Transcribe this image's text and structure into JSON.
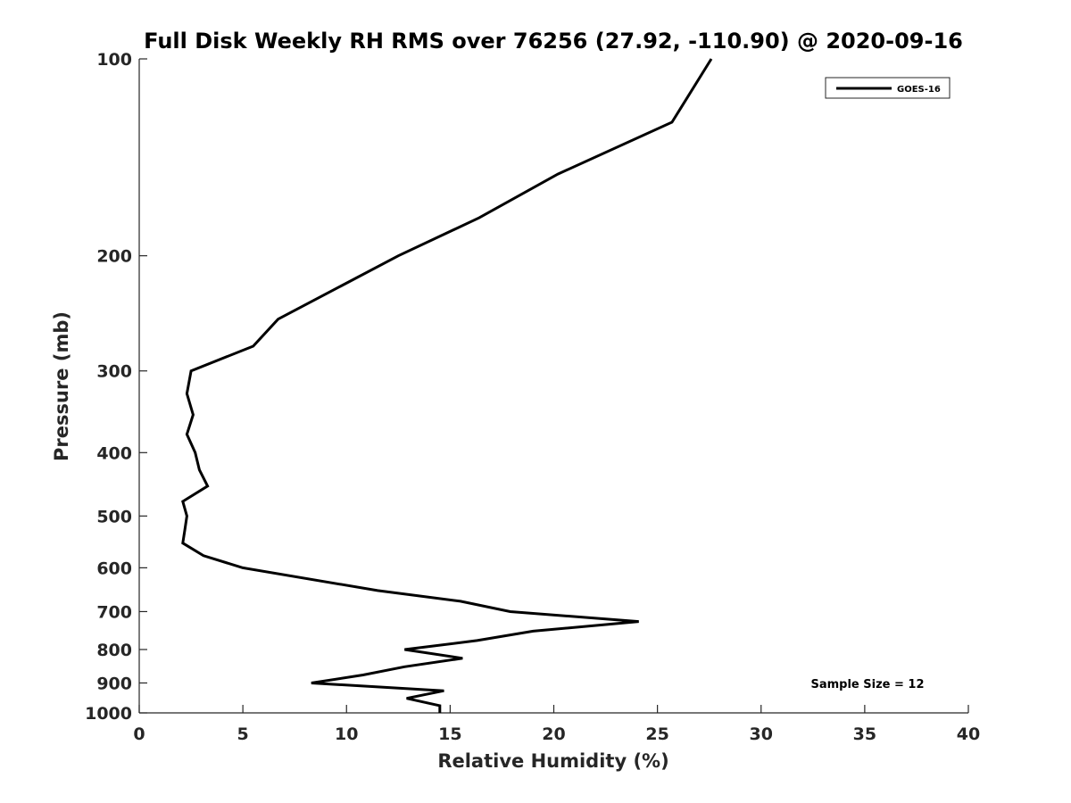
{
  "chart_data": {
    "type": "line",
    "title": "Full Disk Weekly RH RMS over 76256 (27.92, -110.90) @ 2020-09-16",
    "xlabel": "Relative Humidity (%)",
    "ylabel": "Pressure (mb)",
    "xlim": [
      0,
      40
    ],
    "ylim": [
      100,
      1000
    ],
    "y_scale": "log",
    "y_reversed": true,
    "x_ticks": [
      0,
      5,
      10,
      15,
      20,
      25,
      30,
      35,
      40
    ],
    "y_ticks": [
      100,
      200,
      300,
      400,
      500,
      600,
      700,
      800,
      900,
      1000
    ],
    "grid": false,
    "legend_position": "top-right",
    "series": [
      {
        "name": "GOES-16",
        "color": "#000000",
        "points": [
          {
            "x": 27.6,
            "y": 100
          },
          {
            "x": 25.7,
            "y": 125
          },
          {
            "x": 20.2,
            "y": 150
          },
          {
            "x": 16.4,
            "y": 175
          },
          {
            "x": 12.5,
            "y": 200
          },
          {
            "x": 6.7,
            "y": 250
          },
          {
            "x": 5.5,
            "y": 275
          },
          {
            "x": 2.5,
            "y": 300
          },
          {
            "x": 2.3,
            "y": 325
          },
          {
            "x": 2.6,
            "y": 350
          },
          {
            "x": 2.3,
            "y": 375
          },
          {
            "x": 2.7,
            "y": 400
          },
          {
            "x": 2.9,
            "y": 425
          },
          {
            "x": 3.3,
            "y": 450
          },
          {
            "x": 2.1,
            "y": 475
          },
          {
            "x": 2.3,
            "y": 500
          },
          {
            "x": 2.2,
            "y": 525
          },
          {
            "x": 2.1,
            "y": 550
          },
          {
            "x": 3.1,
            "y": 575
          },
          {
            "x": 5.0,
            "y": 600
          },
          {
            "x": 11.5,
            "y": 650
          },
          {
            "x": 15.5,
            "y": 675
          },
          {
            "x": 17.9,
            "y": 700
          },
          {
            "x": 24.1,
            "y": 725
          },
          {
            "x": 19.0,
            "y": 750
          },
          {
            "x": 16.3,
            "y": 775
          },
          {
            "x": 12.8,
            "y": 800
          },
          {
            "x": 15.6,
            "y": 825
          },
          {
            "x": 12.8,
            "y": 850
          },
          {
            "x": 10.8,
            "y": 875
          },
          {
            "x": 8.3,
            "y": 900
          },
          {
            "x": 14.7,
            "y": 925
          },
          {
            "x": 12.9,
            "y": 950
          },
          {
            "x": 14.5,
            "y": 975
          },
          {
            "x": 14.5,
            "y": 1000
          }
        ]
      }
    ],
    "annotations": [
      {
        "text": "Sample Size = 12",
        "position": "bottom-right"
      }
    ]
  }
}
